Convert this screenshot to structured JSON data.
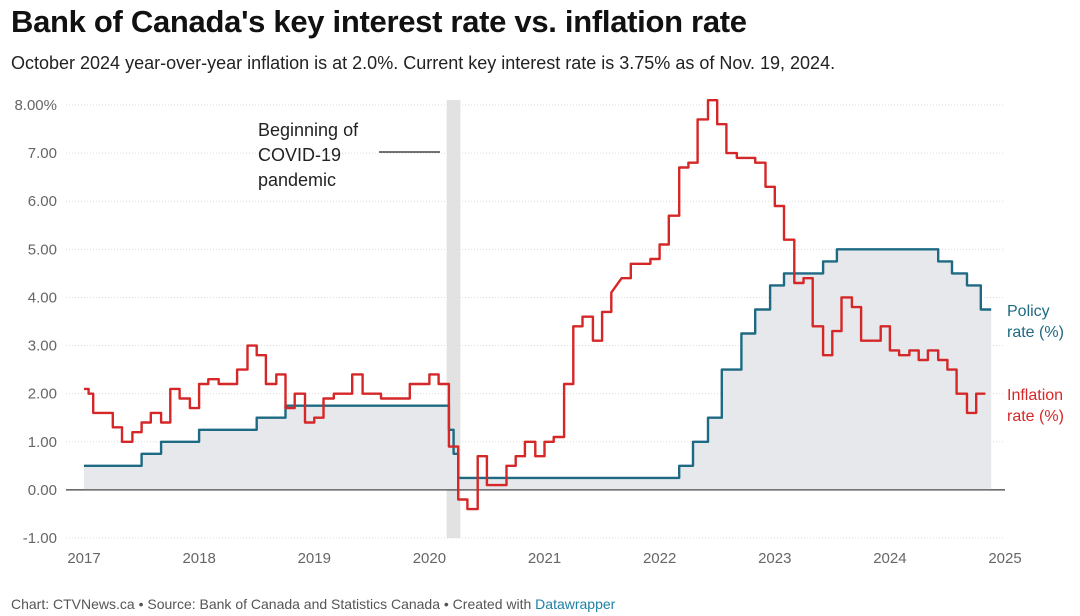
{
  "title": "Bank of Canada's key interest rate vs. inflation rate",
  "subtitle": "October 2024 year-over-year inflation is at 2.0%. Current key interest rate is 3.75% as of Nov. 19, 2024.",
  "footer": {
    "prefix": "Chart: CTVNews.ca • Source: Bank of Canada and Statistics Canada • Created with ",
    "link": "Datawrapper"
  },
  "chart_data": {
    "type": "line",
    "title": "Bank of Canada's key interest rate vs. inflation rate",
    "xlabel": "",
    "ylabel": "",
    "xlim": [
      2017,
      2025
    ],
    "ylim": [
      -1,
      8
    ],
    "grid": true,
    "colors": {
      "policy": "#1d6a82",
      "inflation": "#d62728",
      "area": "#e6e8ec",
      "covid_band": "#e2e2e2"
    },
    "x_ticks": [
      "2017",
      "2018",
      "2019",
      "2020",
      "2021",
      "2022",
      "2023",
      "2024",
      "2025"
    ],
    "y_ticks": [
      "-1.00",
      "0.00",
      "1.00",
      "2.00",
      "3.00",
      "4.00",
      "5.00",
      "6.00",
      "7.00",
      "8.00%"
    ],
    "annotation": {
      "lines": [
        "Beginning of",
        "COVID-19",
        "pandemic"
      ],
      "x_start": 2020.17,
      "x_end": 2020.25
    },
    "series": [
      {
        "name": "Policy rate (%)",
        "label_lines": [
          "Policy",
          "rate (%)"
        ],
        "points": [
          [
            2017.0,
            0.5
          ],
          [
            2017.5,
            0.5
          ],
          [
            2017.5,
            0.75
          ],
          [
            2017.67,
            0.75
          ],
          [
            2017.67,
            1.0
          ],
          [
            2018.0,
            1.0
          ],
          [
            2018.0,
            1.25
          ],
          [
            2018.5,
            1.25
          ],
          [
            2018.5,
            1.5
          ],
          [
            2018.75,
            1.5
          ],
          [
            2018.75,
            1.75
          ],
          [
            2020.17,
            1.75
          ],
          [
            2020.17,
            1.25
          ],
          [
            2020.21,
            1.25
          ],
          [
            2020.21,
            0.75
          ],
          [
            2020.25,
            0.75
          ],
          [
            2020.25,
            0.25
          ],
          [
            2022.17,
            0.25
          ],
          [
            2022.17,
            0.5
          ],
          [
            2022.29,
            0.5
          ],
          [
            2022.29,
            1.0
          ],
          [
            2022.42,
            1.0
          ],
          [
            2022.42,
            1.5
          ],
          [
            2022.54,
            1.5
          ],
          [
            2022.54,
            2.5
          ],
          [
            2022.71,
            2.5
          ],
          [
            2022.71,
            3.25
          ],
          [
            2022.83,
            3.25
          ],
          [
            2022.83,
            3.75
          ],
          [
            2022.96,
            3.75
          ],
          [
            2022.96,
            4.25
          ],
          [
            2023.08,
            4.25
          ],
          [
            2023.08,
            4.5
          ],
          [
            2023.42,
            4.5
          ],
          [
            2023.42,
            4.75
          ],
          [
            2023.54,
            4.75
          ],
          [
            2023.54,
            5.0
          ],
          [
            2024.42,
            5.0
          ],
          [
            2024.42,
            4.75
          ],
          [
            2024.54,
            4.75
          ],
          [
            2024.54,
            4.5
          ],
          [
            2024.67,
            4.5
          ],
          [
            2024.67,
            4.25
          ],
          [
            2024.79,
            4.25
          ],
          [
            2024.79,
            3.75
          ],
          [
            2024.88,
            3.75
          ]
        ]
      },
      {
        "name": "Inflation rate (%)",
        "label_lines": [
          "Inflation",
          "rate (%)"
        ],
        "points": [
          [
            2017.0,
            2.1
          ],
          [
            2017.04,
            2.1
          ],
          [
            2017.04,
            2.0
          ],
          [
            2017.08,
            2.0
          ],
          [
            2017.08,
            1.6
          ],
          [
            2017.25,
            1.6
          ],
          [
            2017.25,
            1.3
          ],
          [
            2017.33,
            1.3
          ],
          [
            2017.33,
            1.0
          ],
          [
            2017.42,
            1.0
          ],
          [
            2017.42,
            1.2
          ],
          [
            2017.5,
            1.2
          ],
          [
            2017.5,
            1.4
          ],
          [
            2017.58,
            1.4
          ],
          [
            2017.58,
            1.6
          ],
          [
            2017.67,
            1.6
          ],
          [
            2017.67,
            1.4
          ],
          [
            2017.75,
            1.4
          ],
          [
            2017.75,
            2.1
          ],
          [
            2017.83,
            2.1
          ],
          [
            2017.83,
            1.9
          ],
          [
            2017.92,
            1.9
          ],
          [
            2017.92,
            1.7
          ],
          [
            2018.0,
            1.7
          ],
          [
            2018.0,
            2.2
          ],
          [
            2018.08,
            2.2
          ],
          [
            2018.08,
            2.3
          ],
          [
            2018.17,
            2.3
          ],
          [
            2018.17,
            2.2
          ],
          [
            2018.33,
            2.2
          ],
          [
            2018.33,
            2.5
          ],
          [
            2018.42,
            2.5
          ],
          [
            2018.42,
            3.0
          ],
          [
            2018.5,
            3.0
          ],
          [
            2018.5,
            2.8
          ],
          [
            2018.58,
            2.8
          ],
          [
            2018.58,
            2.2
          ],
          [
            2018.67,
            2.2
          ],
          [
            2018.67,
            2.4
          ],
          [
            2018.75,
            2.4
          ],
          [
            2018.75,
            1.7
          ],
          [
            2018.83,
            1.7
          ],
          [
            2018.83,
            2.0
          ],
          [
            2018.92,
            2.0
          ],
          [
            2018.92,
            1.4
          ],
          [
            2019.0,
            1.4
          ],
          [
            2019.0,
            1.5
          ],
          [
            2019.08,
            1.5
          ],
          [
            2019.08,
            1.9
          ],
          [
            2019.17,
            1.9
          ],
          [
            2019.17,
            2.0
          ],
          [
            2019.33,
            2.0
          ],
          [
            2019.33,
            2.4
          ],
          [
            2019.42,
            2.4
          ],
          [
            2019.42,
            2.0
          ],
          [
            2019.58,
            2.0
          ],
          [
            2019.58,
            1.9
          ],
          [
            2019.83,
            1.9
          ],
          [
            2019.83,
            2.2
          ],
          [
            2020.0,
            2.2
          ],
          [
            2020.0,
            2.4
          ],
          [
            2020.08,
            2.4
          ],
          [
            2020.08,
            2.2
          ],
          [
            2020.17,
            2.2
          ],
          [
            2020.17,
            0.9
          ],
          [
            2020.25,
            0.9
          ],
          [
            2020.25,
            -0.2
          ],
          [
            2020.33,
            -0.2
          ],
          [
            2020.33,
            -0.4
          ],
          [
            2020.42,
            -0.4
          ],
          [
            2020.42,
            0.7
          ],
          [
            2020.5,
            0.7
          ],
          [
            2020.5,
            0.1
          ],
          [
            2020.67,
            0.1
          ],
          [
            2020.67,
            0.5
          ],
          [
            2020.75,
            0.5
          ],
          [
            2020.75,
            0.7
          ],
          [
            2020.83,
            0.7
          ],
          [
            2020.83,
            1.0
          ],
          [
            2020.92,
            1.0
          ],
          [
            2020.92,
            0.7
          ],
          [
            2021.0,
            0.7
          ],
          [
            2021.0,
            1.0
          ],
          [
            2021.08,
            1.0
          ],
          [
            2021.08,
            1.1
          ],
          [
            2021.17,
            1.1
          ],
          [
            2021.17,
            2.2
          ],
          [
            2021.25,
            2.2
          ],
          [
            2021.25,
            3.4
          ],
          [
            2021.33,
            3.4
          ],
          [
            2021.33,
            3.6
          ],
          [
            2021.42,
            3.6
          ],
          [
            2021.42,
            3.1
          ],
          [
            2021.5,
            3.1
          ],
          [
            2021.5,
            3.7
          ],
          [
            2021.58,
            3.7
          ],
          [
            2021.58,
            4.1
          ],
          [
            2021.67,
            4.4
          ],
          [
            2021.75,
            4.4
          ],
          [
            2021.75,
            4.7
          ],
          [
            2021.92,
            4.7
          ],
          [
            2021.92,
            4.8
          ],
          [
            2022.0,
            4.8
          ],
          [
            2022.0,
            5.1
          ],
          [
            2022.08,
            5.1
          ],
          [
            2022.08,
            5.7
          ],
          [
            2022.17,
            5.7
          ],
          [
            2022.17,
            6.7
          ],
          [
            2022.25,
            6.7
          ],
          [
            2022.25,
            6.8
          ],
          [
            2022.33,
            6.8
          ],
          [
            2022.33,
            7.7
          ],
          [
            2022.42,
            7.7
          ],
          [
            2022.42,
            8.1
          ],
          [
            2022.5,
            8.1
          ],
          [
            2022.5,
            7.6
          ],
          [
            2022.58,
            7.6
          ],
          [
            2022.58,
            7.0
          ],
          [
            2022.67,
            7.0
          ],
          [
            2022.67,
            6.9
          ],
          [
            2022.83,
            6.9
          ],
          [
            2022.83,
            6.8
          ],
          [
            2022.92,
            6.8
          ],
          [
            2022.92,
            6.3
          ],
          [
            2023.0,
            6.3
          ],
          [
            2023.0,
            5.9
          ],
          [
            2023.08,
            5.9
          ],
          [
            2023.08,
            5.2
          ],
          [
            2023.17,
            5.2
          ],
          [
            2023.17,
            4.3
          ],
          [
            2023.25,
            4.3
          ],
          [
            2023.25,
            4.4
          ],
          [
            2023.33,
            4.4
          ],
          [
            2023.33,
            3.4
          ],
          [
            2023.42,
            3.4
          ],
          [
            2023.42,
            2.8
          ],
          [
            2023.5,
            2.8
          ],
          [
            2023.5,
            3.3
          ],
          [
            2023.58,
            3.3
          ],
          [
            2023.58,
            4.0
          ],
          [
            2023.67,
            4.0
          ],
          [
            2023.67,
            3.8
          ],
          [
            2023.75,
            3.8
          ],
          [
            2023.75,
            3.1
          ],
          [
            2023.92,
            3.1
          ],
          [
            2023.92,
            3.4
          ],
          [
            2024.0,
            3.4
          ],
          [
            2024.0,
            2.9
          ],
          [
            2024.08,
            2.9
          ],
          [
            2024.08,
            2.8
          ],
          [
            2024.17,
            2.8
          ],
          [
            2024.17,
            2.9
          ],
          [
            2024.25,
            2.9
          ],
          [
            2024.25,
            2.7
          ],
          [
            2024.33,
            2.7
          ],
          [
            2024.33,
            2.9
          ],
          [
            2024.42,
            2.9
          ],
          [
            2024.42,
            2.7
          ],
          [
            2024.5,
            2.7
          ],
          [
            2024.5,
            2.5
          ],
          [
            2024.58,
            2.5
          ],
          [
            2024.58,
            2.0
          ],
          [
            2024.67,
            2.0
          ],
          [
            2024.67,
            1.6
          ],
          [
            2024.75,
            1.6
          ],
          [
            2024.75,
            2.0
          ],
          [
            2024.83,
            2.0
          ]
        ]
      }
    ]
  }
}
